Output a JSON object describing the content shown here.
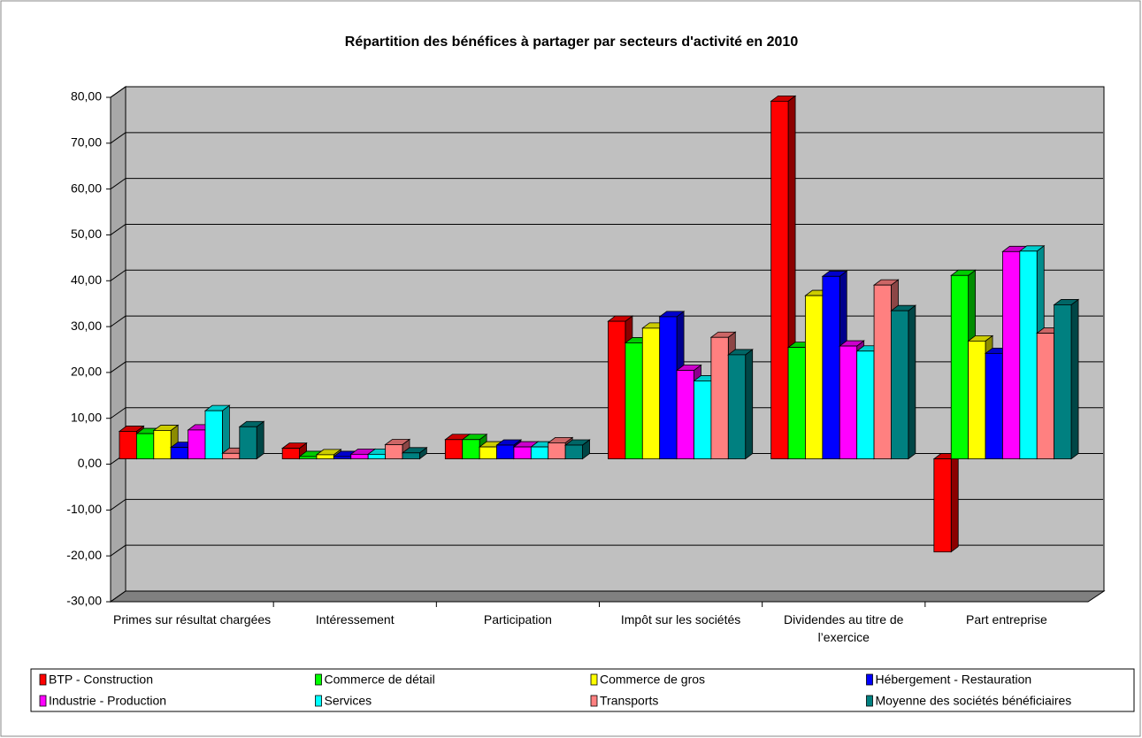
{
  "chart_data": {
    "type": "bar3d",
    "title": "Répartition des bénéfices à partager par secteurs d'activité en 2010",
    "categories": [
      "Primes sur résultat chargées",
      "Intéressement",
      "Participation",
      "Impôt sur les sociétés",
      "Dividendes au titre de l’exercice",
      "Part entreprise"
    ],
    "series": [
      {
        "name": "BTP - Construction",
        "color": "#ff0000",
        "values": [
          6.0,
          2.3,
          4.2,
          30.0,
          78.0,
          -20.3
        ]
      },
      {
        "name": "Commerce de détail",
        "color": "#00ff00",
        "values": [
          5.5,
          0.5,
          4.2,
          25.3,
          24.3,
          40.0
        ]
      },
      {
        "name": "Commerce de gros",
        "color": "#ffff00",
        "values": [
          6.2,
          0.9,
          2.6,
          28.5,
          35.6,
          25.7
        ]
      },
      {
        "name": "Hébergement - Restauration",
        "color": "#0000ff",
        "values": [
          2.5,
          0.5,
          3.0,
          31.0,
          39.8,
          23.0
        ]
      },
      {
        "name": "Industrie - Production",
        "color": "#ff00ff",
        "values": [
          6.3,
          1.0,
          2.6,
          19.3,
          24.6,
          45.2
        ]
      },
      {
        "name": "Services",
        "color": "#00ffff",
        "values": [
          10.5,
          1.0,
          2.6,
          17.0,
          23.5,
          45.3
        ]
      },
      {
        "name": "Transports",
        "color": "#ff8080",
        "values": [
          1.2,
          3.1,
          3.5,
          26.5,
          37.9,
          27.4
        ]
      },
      {
        "name": "Moyenne des sociétés bénéficiaires",
        "color": "#008080",
        "values": [
          7.0,
          1.3,
          3.0,
          22.7,
          32.3,
          33.6
        ]
      }
    ],
    "ylim": [
      -30,
      80
    ],
    "yticks": [
      {
        "value": -30,
        "label": "-30,00"
      },
      {
        "value": -20,
        "label": "-20,00"
      },
      {
        "value": -10,
        "label": "-10,00"
      },
      {
        "value": 0,
        "label": "0,00"
      },
      {
        "value": 10,
        "label": "10,00"
      },
      {
        "value": 20,
        "label": "20,00"
      },
      {
        "value": 30,
        "label": "30,00"
      },
      {
        "value": 40,
        "label": "40,00"
      },
      {
        "value": 50,
        "label": "50,00"
      },
      {
        "value": 60,
        "label": "60,00"
      },
      {
        "value": 70,
        "label": "70,00"
      },
      {
        "value": 80,
        "label": "80,00"
      }
    ],
    "grid": true,
    "legend": "bottom"
  }
}
